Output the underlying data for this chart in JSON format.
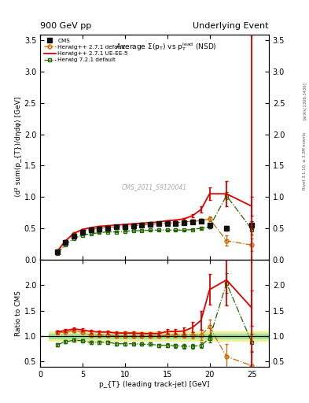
{
  "title_left": "900 GeV pp",
  "title_right": "Underlying Event",
  "plot_title": "Average Σ(p_{T}) vs p_{T}^{lead} (NSD)",
  "ylabel_main": "⟨d² sum(p_{T})/dηdφ⟩ [GeV]",
  "ylabel_ratio": "Ratio to CMS",
  "xlabel": "p_{T} (leading track-jet) [GeV]",
  "watermark": "CMS_2011_S9120041",
  "right_label": "Rivet 3.1.10, ≥ 3.3M events",
  "arxiv_label": "[arXiv:1306.3436]",
  "cms_x": [
    2.0,
    3.0,
    4.0,
    5.0,
    6.0,
    7.0,
    8.0,
    9.0,
    10.0,
    11.0,
    12.0,
    13.0,
    14.0,
    15.0,
    16.0,
    17.0,
    18.0,
    19.0,
    20.0,
    22.0,
    25.0
  ],
  "cms_y": [
    0.12,
    0.27,
    0.37,
    0.43,
    0.47,
    0.49,
    0.5,
    0.52,
    0.53,
    0.54,
    0.55,
    0.56,
    0.57,
    0.57,
    0.58,
    0.59,
    0.6,
    0.61,
    0.55,
    0.5,
    0.55
  ],
  "cms_yerr": [
    0.015,
    0.012,
    0.01,
    0.01,
    0.01,
    0.01,
    0.01,
    0.01,
    0.01,
    0.01,
    0.01,
    0.01,
    0.01,
    0.01,
    0.01,
    0.01,
    0.015,
    0.015,
    0.02,
    0.04,
    0.06
  ],
  "hw271d_x": [
    2.0,
    3.0,
    4.0,
    5.0,
    6.0,
    7.0,
    8.0,
    9.0,
    10.0,
    11.0,
    12.0,
    13.0,
    14.0,
    15.0,
    16.0,
    17.0,
    18.0,
    19.0,
    20.0,
    22.0,
    25.0
  ],
  "hw271d_y": [
    0.13,
    0.29,
    0.41,
    0.46,
    0.48,
    0.5,
    0.51,
    0.52,
    0.53,
    0.54,
    0.55,
    0.56,
    0.57,
    0.58,
    0.59,
    0.6,
    0.61,
    0.62,
    0.65,
    0.3,
    0.23
  ],
  "hw271d_yerr": [
    0.004,
    0.004,
    0.004,
    0.004,
    0.004,
    0.004,
    0.004,
    0.004,
    0.004,
    0.004,
    0.004,
    0.004,
    0.004,
    0.004,
    0.006,
    0.008,
    0.01,
    0.02,
    0.04,
    0.08,
    0.1
  ],
  "hw271ue_x": [
    2.0,
    3.0,
    4.0,
    5.0,
    6.0,
    7.0,
    8.0,
    9.0,
    10.0,
    11.0,
    12.0,
    13.0,
    14.0,
    15.0,
    16.0,
    17.0,
    18.0,
    19.0,
    20.0,
    22.0,
    25.0
  ],
  "hw271ue_y": [
    0.13,
    0.3,
    0.42,
    0.48,
    0.51,
    0.53,
    0.54,
    0.55,
    0.56,
    0.57,
    0.58,
    0.59,
    0.6,
    0.62,
    0.63,
    0.65,
    0.7,
    0.8,
    1.05,
    1.05,
    0.85
  ],
  "hw271ue_yerr": [
    0.004,
    0.004,
    0.004,
    0.004,
    0.004,
    0.004,
    0.004,
    0.004,
    0.004,
    0.004,
    0.004,
    0.004,
    0.006,
    0.008,
    0.01,
    0.015,
    0.025,
    0.05,
    0.1,
    0.2,
    0.15
  ],
  "hw721d_x": [
    2.0,
    3.0,
    4.0,
    5.0,
    6.0,
    7.0,
    8.0,
    9.0,
    10.0,
    11.0,
    12.0,
    13.0,
    14.0,
    15.0,
    16.0,
    17.0,
    18.0,
    19.0,
    20.0,
    22.0,
    25.0
  ],
  "hw721d_y": [
    0.1,
    0.24,
    0.34,
    0.39,
    0.41,
    0.43,
    0.44,
    0.44,
    0.45,
    0.46,
    0.46,
    0.47,
    0.47,
    0.47,
    0.47,
    0.47,
    0.48,
    0.5,
    0.52,
    1.02,
    0.48
  ],
  "hw721d_yerr": [
    0.003,
    0.003,
    0.003,
    0.003,
    0.003,
    0.003,
    0.003,
    0.003,
    0.003,
    0.003,
    0.003,
    0.003,
    0.003,
    0.003,
    0.004,
    0.005,
    0.006,
    0.008,
    0.015,
    0.06,
    0.08
  ],
  "ratio_x": [
    2.0,
    3.0,
    4.0,
    5.0,
    6.0,
    7.0,
    8.0,
    9.0,
    10.0,
    11.0,
    12.0,
    13.0,
    14.0,
    15.0,
    16.0,
    17.0,
    18.0,
    19.0,
    20.0,
    22.0,
    25.0
  ],
  "ratio_hw271d_y": [
    1.08,
    1.07,
    1.11,
    1.07,
    1.02,
    1.02,
    1.02,
    1.0,
    1.0,
    1.0,
    1.0,
    1.0,
    1.0,
    1.02,
    1.02,
    1.02,
    1.02,
    1.02,
    1.18,
    0.6,
    0.42
  ],
  "ratio_hw271d_yerr": [
    0.03,
    0.03,
    0.03,
    0.03,
    0.03,
    0.03,
    0.03,
    0.03,
    0.03,
    0.03,
    0.03,
    0.03,
    0.03,
    0.04,
    0.04,
    0.05,
    0.06,
    0.1,
    0.15,
    0.25,
    0.28
  ],
  "ratio_hw271ue_y": [
    1.08,
    1.11,
    1.14,
    1.12,
    1.09,
    1.08,
    1.08,
    1.06,
    1.06,
    1.06,
    1.05,
    1.05,
    1.05,
    1.09,
    1.09,
    1.1,
    1.17,
    1.31,
    1.91,
    2.1,
    1.55
  ],
  "ratio_hw271ue_yerr": [
    0.03,
    0.03,
    0.03,
    0.03,
    0.03,
    0.03,
    0.03,
    0.03,
    0.03,
    0.03,
    0.03,
    0.03,
    0.04,
    0.05,
    0.05,
    0.07,
    0.1,
    0.18,
    0.3,
    0.5,
    0.35
  ],
  "ratio_hw721d_y": [
    0.83,
    0.89,
    0.92,
    0.91,
    0.87,
    0.88,
    0.88,
    0.85,
    0.85,
    0.85,
    0.84,
    0.84,
    0.82,
    0.82,
    0.81,
    0.8,
    0.8,
    0.82,
    0.95,
    2.04,
    0.87
  ],
  "ratio_hw721d_yerr": [
    0.03,
    0.03,
    0.03,
    0.03,
    0.03,
    0.03,
    0.03,
    0.03,
    0.03,
    0.03,
    0.03,
    0.03,
    0.03,
    0.04,
    0.04,
    0.04,
    0.04,
    0.05,
    0.07,
    0.2,
    0.18
  ],
  "xline": 25.0,
  "xlim_main": [
    1,
    27
  ],
  "ylim_main": [
    0,
    3.6
  ],
  "xlim_ratio": [
    1,
    27
  ],
  "ylim_ratio": [
    0.4,
    2.5
  ],
  "color_cms": "#111111",
  "color_hw271d": "#cc6600",
  "color_hw271ue": "#dd0000",
  "color_hw721d": "#226600",
  "color_green_band": "#99dd99",
  "color_yellow_band": "#eeee88",
  "yticks_main": [
    0.0,
    0.5,
    1.0,
    1.5,
    2.0,
    2.5,
    3.0,
    3.5
  ],
  "yticks_ratio": [
    0.5,
    1.0,
    1.5,
    2.0
  ],
  "xticks": [
    0,
    5,
    10,
    15,
    20,
    25
  ]
}
